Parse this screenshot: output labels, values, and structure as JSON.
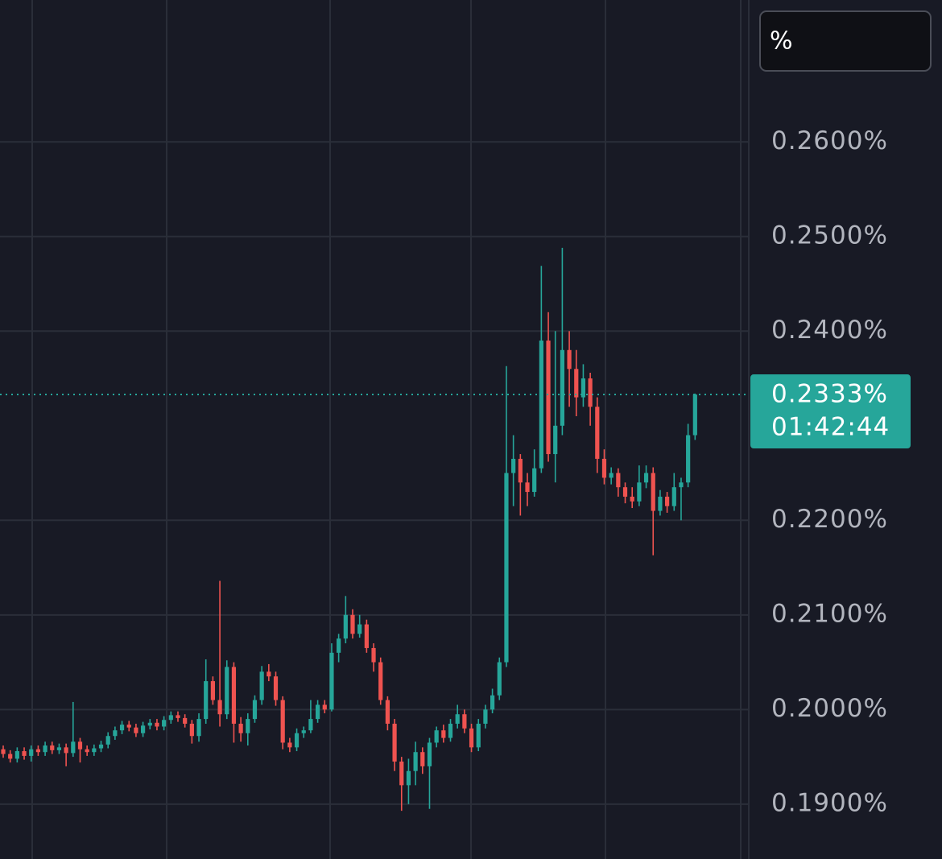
{
  "chart_data": {
    "type": "candlestick",
    "unit_button": "%",
    "yticks": [
      {
        "value": 0.26,
        "label": "0.2600%"
      },
      {
        "value": 0.25,
        "label": "0.2500%"
      },
      {
        "value": 0.24,
        "label": "0.2400%"
      },
      {
        "value": 0.22,
        "label": "0.2200%"
      },
      {
        "value": 0.21,
        "label": "0.2100%"
      },
      {
        "value": 0.2,
        "label": "0.2000%"
      },
      {
        "value": 0.19,
        "label": "0.1900%"
      }
    ],
    "ylim": [
      0.1842,
      0.275
    ],
    "grid": true,
    "up_color": "#26a69a",
    "down_color": "#ef5350",
    "last_price": {
      "value": 0.2333,
      "label": "0.2333%"
    },
    "countdown": "01:42:44",
    "open": [
      0.1958,
      0.1953,
      0.1948,
      0.1956,
      0.1951,
      0.1958,
      0.1955,
      0.1962,
      0.1957,
      0.196,
      0.1954,
      0.1966,
      0.1958,
      0.1955,
      0.1959,
      0.1963,
      0.1972,
      0.1978,
      0.1984,
      0.1981,
      0.1975,
      0.1983,
      0.1986,
      0.1982,
      0.1989,
      0.1994,
      0.1991,
      0.1985,
      0.1972,
      0.199,
      0.203,
      0.201,
      0.1995,
      0.2045,
      0.1985,
      0.1975,
      0.199,
      0.201,
      0.204,
      0.2035,
      0.201,
      0.1965,
      0.196,
      0.1975,
      0.1978,
      0.199,
      0.2005,
      0.2,
      0.206,
      0.2075,
      0.21,
      0.208,
      0.209,
      0.2065,
      0.205,
      0.201,
      0.1985,
      0.1945,
      0.192,
      0.1935,
      0.1955,
      0.194,
      0.1965,
      0.1978,
      0.197,
      0.1985,
      0.1995,
      0.198,
      0.196,
      0.1985,
      0.2,
      0.2015,
      0.205,
      0.225,
      0.2265,
      0.224,
      0.223,
      0.2255,
      0.239,
      0.227,
      0.23,
      0.238,
      0.236,
      0.233,
      0.235,
      0.232,
      0.2265,
      0.2245,
      0.225,
      0.2235,
      0.2225,
      0.222,
      0.224,
      0.225,
      0.221,
      0.2225,
      0.2215,
      0.2235,
      0.224,
      0.229
    ],
    "high": [
      0.1962,
      0.1957,
      0.196,
      0.196,
      0.1962,
      0.1962,
      0.1966,
      0.1966,
      0.1964,
      0.1964,
      0.2008,
      0.197,
      0.1962,
      0.1963,
      0.1967,
      0.1976,
      0.1982,
      0.1988,
      0.1988,
      0.1985,
      0.1987,
      0.199,
      0.199,
      0.1993,
      0.1998,
      0.1998,
      0.1995,
      0.1989,
      0.1996,
      0.2053,
      0.2035,
      0.2136,
      0.2052,
      0.205,
      0.1992,
      0.1996,
      0.2015,
      0.2046,
      0.2048,
      0.204,
      0.2014,
      0.197,
      0.198,
      0.1982,
      0.201,
      0.201,
      0.201,
      0.207,
      0.208,
      0.212,
      0.2106,
      0.21,
      0.2095,
      0.207,
      0.2055,
      0.2014,
      0.199,
      0.195,
      0.1948,
      0.1966,
      0.196,
      0.197,
      0.1982,
      0.1984,
      0.199,
      0.2005,
      0.2,
      0.1985,
      0.199,
      0.2005,
      0.2022,
      0.2055,
      0.2363,
      0.229,
      0.227,
      0.225,
      0.2275,
      0.2469,
      0.242,
      0.24,
      0.2488,
      0.24,
      0.238,
      0.2365,
      0.2356,
      0.233,
      0.2275,
      0.2256,
      0.2255,
      0.224,
      0.2235,
      0.2258,
      0.2258,
      0.2256,
      0.2232,
      0.223,
      0.225,
      0.2245,
      0.2302,
      0.2334
    ],
    "low": [
      0.1949,
      0.1944,
      0.1944,
      0.1947,
      0.1945,
      0.1951,
      0.1951,
      0.1953,
      0.1953,
      0.194,
      0.195,
      0.1944,
      0.1951,
      0.1951,
      0.1955,
      0.1959,
      0.1968,
      0.1974,
      0.1977,
      0.1971,
      0.1971,
      0.1979,
      0.1978,
      0.1978,
      0.1985,
      0.1987,
      0.1981,
      0.1964,
      0.1966,
      0.1985,
      0.2005,
      0.1982,
      0.199,
      0.1965,
      0.1966,
      0.1962,
      0.1986,
      0.2005,
      0.203,
      0.2004,
      0.1958,
      0.1955,
      0.1956,
      0.197,
      0.1975,
      0.1986,
      0.1996,
      0.1998,
      0.205,
      0.207,
      0.2075,
      0.2076,
      0.206,
      0.204,
      0.2005,
      0.1978,
      0.1935,
      0.1893,
      0.19,
      0.192,
      0.1932,
      0.1895,
      0.196,
      0.1965,
      0.1966,
      0.198,
      0.1975,
      0.1955,
      0.1956,
      0.198,
      0.1996,
      0.201,
      0.2045,
      0.2215,
      0.2205,
      0.2215,
      0.2225,
      0.225,
      0.2262,
      0.224,
      0.229,
      0.232,
      0.231,
      0.232,
      0.23,
      0.225,
      0.2238,
      0.2238,
      0.2225,
      0.2218,
      0.2213,
      0.2215,
      0.2234,
      0.2163,
      0.2205,
      0.2208,
      0.221,
      0.22,
      0.2235,
      0.2285
    ],
    "close": [
      0.1953,
      0.1948,
      0.1956,
      0.1951,
      0.1958,
      0.1955,
      0.1962,
      0.1957,
      0.196,
      0.1954,
      0.1966,
      0.1958,
      0.1955,
      0.1959,
      0.1963,
      0.1972,
      0.1978,
      0.1984,
      0.1981,
      0.1975,
      0.1983,
      0.1986,
      0.1982,
      0.1989,
      0.1994,
      0.1991,
      0.1985,
      0.1972,
      0.199,
      0.203,
      0.201,
      0.1995,
      0.2045,
      0.1985,
      0.1975,
      0.199,
      0.201,
      0.204,
      0.2035,
      0.201,
      0.1965,
      0.196,
      0.1975,
      0.1978,
      0.199,
      0.2005,
      0.2,
      0.206,
      0.2075,
      0.21,
      0.208,
      0.209,
      0.2065,
      0.205,
      0.201,
      0.1985,
      0.1945,
      0.192,
      0.1935,
      0.1955,
      0.194,
      0.1965,
      0.1978,
      0.197,
      0.1985,
      0.1995,
      0.198,
      0.196,
      0.1985,
      0.2,
      0.2015,
      0.205,
      0.225,
      0.2265,
      0.224,
      0.223,
      0.2255,
      0.239,
      0.227,
      0.23,
      0.238,
      0.236,
      0.233,
      0.235,
      0.232,
      0.2265,
      0.2245,
      0.225,
      0.2235,
      0.2225,
      0.222,
      0.224,
      0.225,
      0.221,
      0.2225,
      0.2215,
      0.2235,
      0.224,
      0.229,
      0.2333
    ]
  }
}
